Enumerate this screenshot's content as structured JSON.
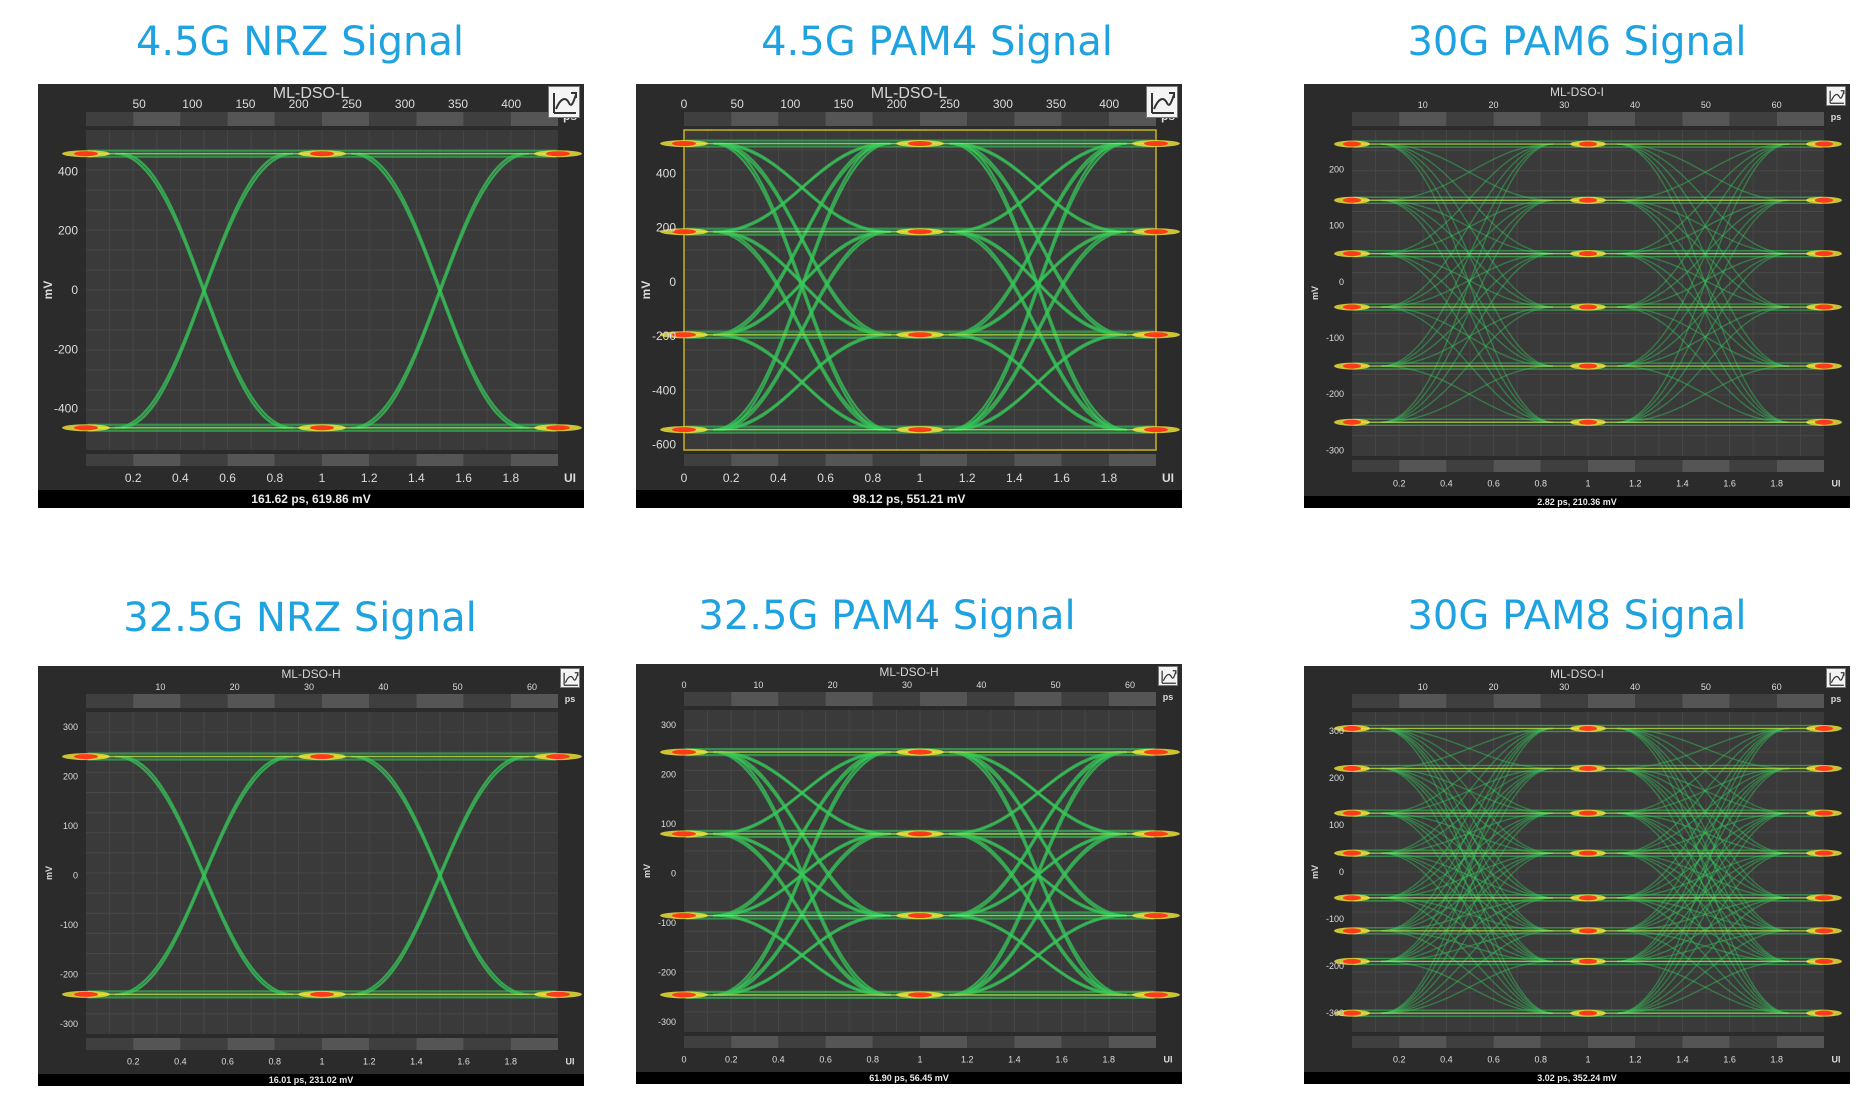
{
  "colors": {
    "caption": "#1fa2e0",
    "panel_bg": "#2b2b2b",
    "plot_bg": "#3a3a3a",
    "hot": "#ff3a1a",
    "warm": "#f5e83a",
    "trace": "#37c85a",
    "cold": "#7a8c7a"
  },
  "panels": [
    {
      "caption": "4.5G NRZ Signal",
      "instrument": "ML-DSO-L",
      "status": "161.62 ps, 619.86 mV",
      "time_unit": "ps",
      "ui_unit": "UI",
      "y_unit": "mV",
      "icon": "graph-settings-icon",
      "chart_data": {
        "type": "eye",
        "levels": 2,
        "ui_ticks": [
          "0.2",
          "0.4",
          "0.6",
          "0.8",
          "1",
          "1.2",
          "1.4",
          "1.6",
          "1.8"
        ],
        "ui_range": [
          0,
          2
        ],
        "time_ticks": [
          "50",
          "100",
          "150",
          "200",
          "250",
          "300",
          "350",
          "400"
        ],
        "time_range": [
          0,
          444
        ],
        "y_ticks": [
          "400",
          "200",
          "0",
          "-200",
          "-400"
        ],
        "y_range": [
          -540,
          540
        ],
        "level_values_mv": [
          -465,
          460
        ],
        "crossings_ui": [
          0.5,
          1.5
        ]
      }
    },
    {
      "caption": "4.5G PAM4 Signal",
      "instrument": "ML-DSO-L",
      "status": "98.12 ps, 551.21 mV",
      "time_unit": "ps",
      "ui_unit": "UI",
      "y_unit": "mV",
      "icon": "graph-settings-icon",
      "chart_data": {
        "type": "eye",
        "levels": 4,
        "ui_ticks": [
          "0",
          "0.2",
          "0.4",
          "0.6",
          "0.8",
          "1",
          "1.2",
          "1.4",
          "1.6",
          "1.8"
        ],
        "ui_range": [
          0,
          2
        ],
        "time_ticks": [
          "0",
          "50",
          "100",
          "150",
          "200",
          "250",
          "300",
          "350",
          "400"
        ],
        "time_range": [
          0,
          444
        ],
        "y_ticks": [
          "400",
          "200",
          "0",
          "-200",
          "-400",
          "-600"
        ],
        "y_range": [
          -620,
          560
        ],
        "level_values_mv": [
          -545,
          -195,
          185,
          510
        ],
        "crossings_ui": [
          0.5,
          1.5
        ]
      }
    },
    {
      "caption": "30G PAM6 Signal",
      "instrument": "ML-DSO-I",
      "status": "2.82 ps, 210.36 mV",
      "time_unit": "ps",
      "ui_unit": "UI",
      "y_unit": "mV",
      "icon": "graph-settings-icon",
      "chart_data": {
        "type": "eye",
        "levels": 6,
        "ui_ticks": [
          "0.2",
          "0.4",
          "0.6",
          "0.8",
          "1",
          "1.2",
          "1.4",
          "1.6",
          "1.8"
        ],
        "ui_range": [
          0,
          2
        ],
        "time_ticks": [
          "10",
          "20",
          "30",
          "40",
          "50",
          "60"
        ],
        "time_range": [
          0,
          66.7
        ],
        "y_ticks": [
          "200",
          "100",
          "0",
          "-100",
          "-200",
          "-300"
        ],
        "y_range": [
          -310,
          270
        ],
        "level_values_mv": [
          -250,
          -150,
          -45,
          50,
          145,
          245
        ],
        "crossings_ui": [
          0.5,
          1.5
        ]
      }
    },
    {
      "caption": "32.5G NRZ Signal",
      "instrument": "ML-DSO-H",
      "status": "16.01 ps, 231.02 mV",
      "time_unit": "ps",
      "ui_unit": "UI",
      "y_unit": "mV",
      "icon": "graph-settings-icon",
      "chart_data": {
        "type": "eye",
        "levels": 2,
        "ui_ticks": [
          "0.2",
          "0.4",
          "0.6",
          "0.8",
          "1",
          "1.2",
          "1.4",
          "1.6",
          "1.8"
        ],
        "ui_range": [
          0,
          2
        ],
        "time_ticks": [
          "10",
          "20",
          "30",
          "40",
          "50",
          "60"
        ],
        "time_range": [
          0,
          63.5
        ],
        "y_ticks": [
          "300",
          "200",
          "100",
          "0",
          "-100",
          "-200",
          "-300"
        ],
        "y_range": [
          -320,
          330
        ],
        "level_values_mv": [
          -240,
          240
        ],
        "crossings_ui": [
          0.5,
          1.5
        ]
      }
    },
    {
      "caption": "32.5G PAM4 Signal",
      "instrument": "ML-DSO-H",
      "status": "61.90 ps, 56.45 mV",
      "time_unit": "ps",
      "ui_unit": "UI",
      "y_unit": "mV",
      "icon": "graph-settings-icon",
      "chart_data": {
        "type": "eye",
        "levels": 4,
        "ui_ticks": [
          "0",
          "0.2",
          "0.4",
          "0.6",
          "0.8",
          "1",
          "1.2",
          "1.4",
          "1.6",
          "1.8"
        ],
        "ui_range": [
          0,
          2
        ],
        "time_ticks": [
          "0",
          "10",
          "20",
          "30",
          "40",
          "50",
          "60"
        ],
        "time_range": [
          0,
          63.5
        ],
        "y_ticks": [
          "300",
          "200",
          "100",
          "0",
          "-100",
          "-200",
          "-300"
        ],
        "y_range": [
          -320,
          330
        ],
        "level_values_mv": [
          -245,
          -85,
          80,
          245
        ],
        "crossings_ui": [
          0.5,
          1.5
        ]
      }
    },
    {
      "caption": "30G PAM8 Signal",
      "instrument": "ML-DSO-I",
      "status": "3.02 ps, 352.24 mV",
      "time_unit": "ps",
      "ui_unit": "UI",
      "y_unit": "mV",
      "icon": "graph-settings-icon",
      "chart_data": {
        "type": "eye",
        "levels": 8,
        "ui_ticks": [
          "0.2",
          "0.4",
          "0.6",
          "0.8",
          "1",
          "1.2",
          "1.4",
          "1.6",
          "1.8"
        ],
        "ui_range": [
          0,
          2
        ],
        "time_ticks": [
          "10",
          "20",
          "30",
          "40",
          "50",
          "60"
        ],
        "time_range": [
          0,
          66.7
        ],
        "y_ticks": [
          "300",
          "200",
          "100",
          "0",
          "-100",
          "-200",
          "-300"
        ],
        "y_range": [
          -340,
          340
        ],
        "level_values_mv": [
          -300,
          -190,
          -125,
          -55,
          40,
          125,
          220,
          305
        ],
        "crossings_ui": [
          0.5,
          1.5
        ]
      }
    }
  ]
}
